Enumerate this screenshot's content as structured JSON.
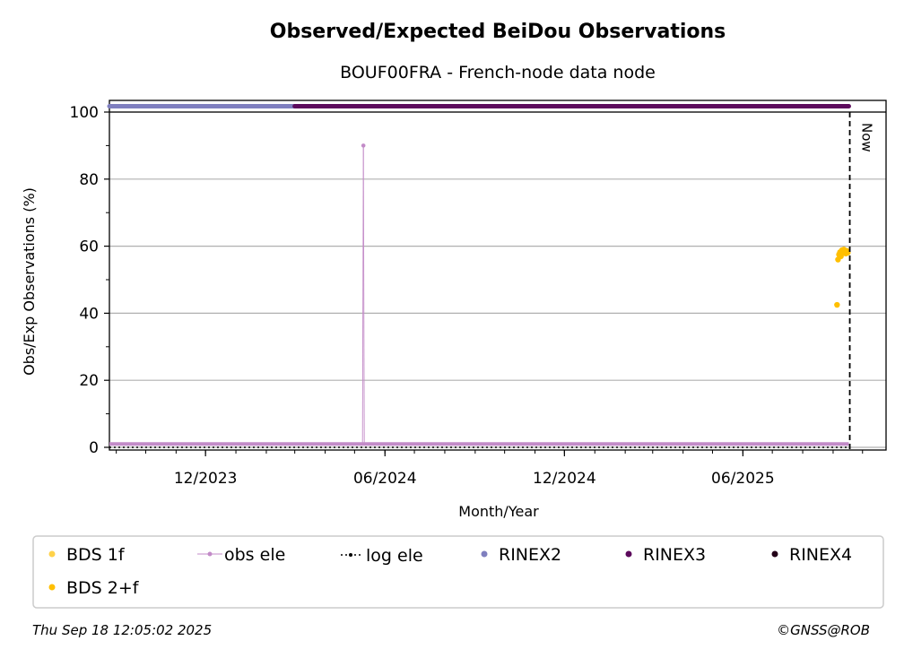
{
  "chart_data": {
    "type": "scatter",
    "title": "Observed/Expected BeiDou Observations",
    "subtitle": "BOUF00FRA - French-node data node",
    "xlabel": "Month/Year",
    "ylabel": "Obs/Exp Observations (%)",
    "ylim": [
      0,
      100
    ],
    "xlim": [
      "2023-08-25",
      "2025-10-25"
    ],
    "grid": "horizontal",
    "x_ticks": [
      {
        "date": "2023-12-01",
        "label": "12/2023"
      },
      {
        "date": "2024-06-01",
        "label": "06/2024"
      },
      {
        "date": "2024-12-01",
        "label": "12/2024"
      },
      {
        "date": "2025-06-01",
        "label": "06/2025"
      }
    ],
    "y_ticks": [
      0,
      20,
      40,
      60,
      80,
      100
    ],
    "now_marker": {
      "date": "2025-09-18",
      "label": "Now"
    },
    "series": [
      {
        "name": "BDS 1f",
        "color": "#ffd24a",
        "points": []
      },
      {
        "name": "BDS 2+f",
        "color": "#ffbf00",
        "points": [
          {
            "x": "2025-09-05",
            "y": 42.5
          },
          {
            "x": "2025-09-06",
            "y": 56.0
          },
          {
            "x": "2025-09-07",
            "y": 57.5
          },
          {
            "x": "2025-09-08",
            "y": 58.2
          },
          {
            "x": "2025-09-09",
            "y": 57.0
          },
          {
            "x": "2025-09-10",
            "y": 58.8
          },
          {
            "x": "2025-09-11",
            "y": 58.0
          },
          {
            "x": "2025-09-12",
            "y": 59.0
          },
          {
            "x": "2025-09-13",
            "y": 58.5
          },
          {
            "x": "2025-09-14",
            "y": 57.8
          },
          {
            "x": "2025-09-15",
            "y": 58.6
          },
          {
            "x": "2025-09-16",
            "y": 58.1
          }
        ]
      },
      {
        "name": "obs ele",
        "color": "#c38bc8",
        "baseline": 1.0,
        "start": "2023-08-25",
        "end": "2025-09-17",
        "spike": {
          "x": "2024-05-10",
          "y": 90
        }
      },
      {
        "name": "log ele",
        "color": "#000000",
        "value": 0,
        "start": "2023-08-25",
        "end": "2025-09-17"
      },
      {
        "name": "RINEX2",
        "color": "#7f7fbf",
        "start": "2023-08-25",
        "end": "2024-03-01"
      },
      {
        "name": "RINEX3",
        "color": "#5c0a5c",
        "start": "2024-03-01",
        "end": "2025-09-17"
      },
      {
        "name": "RINEX4",
        "color": "#240018",
        "start": null,
        "end": null
      }
    ]
  },
  "legend": {
    "items": [
      {
        "label": "BDS 1f",
        "color": "#ffd24a",
        "marker": "dot"
      },
      {
        "label": "obs ele",
        "color": "#c38bc8",
        "marker": "line-dot"
      },
      {
        "label": "log ele",
        "color": "#000000",
        "marker": "dotted-line"
      },
      {
        "label": "RINEX2",
        "color": "#7f7fbf",
        "marker": "dot"
      },
      {
        "label": "RINEX3",
        "color": "#5c0a5c",
        "marker": "dot"
      },
      {
        "label": "RINEX4",
        "color": "#240018",
        "marker": "dot"
      },
      {
        "label": "BDS 2+f",
        "color": "#ffbf00",
        "marker": "dot"
      }
    ]
  },
  "footer": {
    "timestamp": "Thu Sep 18 12:05:02 2025",
    "credit": "©GNSS@ROB"
  }
}
